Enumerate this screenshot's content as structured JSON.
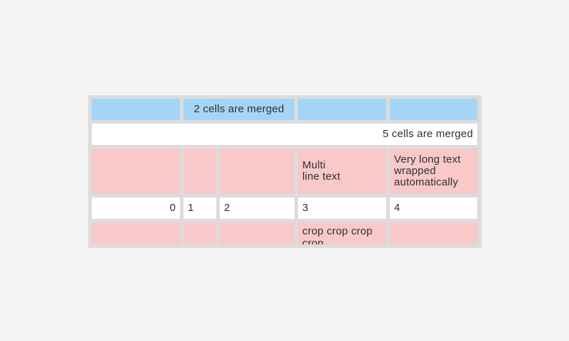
{
  "page": {
    "background_color": "#f4f4f4"
  },
  "table": {
    "frame_color": "#dcdcdc",
    "cell_colors": {
      "blue": "#a5d5f6",
      "pink": "#f9c9c9",
      "white": "#ffffff"
    },
    "text_color": "#2f2f2f",
    "rows": [
      {
        "kind": "blue-header",
        "cells": [
          {
            "text": ""
          },
          {
            "text": "2 cells are merged",
            "span": 2,
            "align": "center"
          },
          {
            "text": ""
          },
          {
            "text": ""
          }
        ]
      },
      {
        "kind": "white-merged",
        "cells": [
          {
            "text": "5 cells are merged",
            "span": 5,
            "align": "right"
          }
        ]
      },
      {
        "kind": "pink",
        "cells": [
          {
            "text": ""
          },
          {
            "text": ""
          },
          {
            "text": ""
          },
          {
            "text": "Multi\nline text"
          },
          {
            "text": "Very long text wrapped automatically"
          }
        ]
      },
      {
        "kind": "white-numbers",
        "cells": [
          {
            "text": "0",
            "align": "right"
          },
          {
            "text": "1"
          },
          {
            "text": "2"
          },
          {
            "text": "3"
          },
          {
            "text": "4"
          }
        ]
      },
      {
        "kind": "pink-cropped",
        "cells": [
          {
            "text": ""
          },
          {
            "text": ""
          },
          {
            "text": ""
          },
          {
            "text": "crop crop crop crop"
          },
          {
            "text": ""
          }
        ]
      }
    ]
  }
}
